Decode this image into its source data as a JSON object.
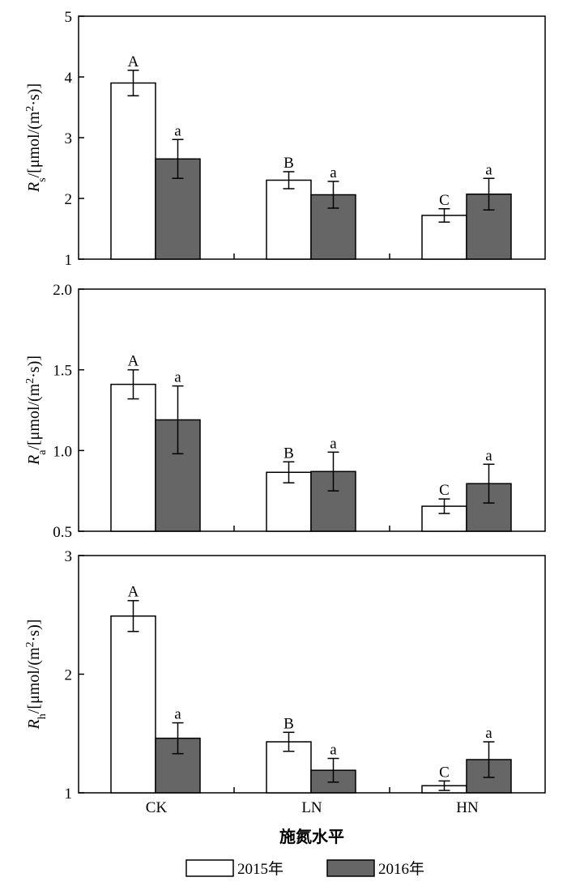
{
  "chart_data": {
    "type": "bar",
    "categories": [
      "CK",
      "LN",
      "HN"
    ],
    "xlabel": "施氮水平",
    "legend": {
      "placement": "bottom",
      "entries": [
        {
          "name": "2015年",
          "color": "#ffffff"
        },
        {
          "name": "2016年",
          "color": "#666666"
        }
      ]
    },
    "panels": [
      {
        "ylabel_main": "R",
        "ylabel_sub": "s",
        "ylabel_unit": "/[μmol/(m",
        "ylabel_sup": "2",
        "ylabel_tail": "·s)]",
        "ylim": [
          1,
          5
        ],
        "yticks": [
          1,
          2,
          3,
          4,
          5
        ],
        "ytick_labels": [
          "1",
          "2",
          "3",
          "4",
          "5"
        ],
        "series": [
          {
            "name": "2015年",
            "values": [
              3.9,
              2.3,
              1.72
            ],
            "errors": [
              0.21,
              0.14,
              0.11
            ],
            "labels": [
              "A",
              "B",
              "C"
            ]
          },
          {
            "name": "2016年",
            "values": [
              2.65,
              2.06,
              2.07
            ],
            "errors": [
              0.32,
              0.22,
              0.26
            ],
            "labels": [
              "a",
              "a",
              "a"
            ]
          }
        ]
      },
      {
        "ylabel_main": "R",
        "ylabel_sub": "a",
        "ylabel_unit": "/[μmol/(m",
        "ylabel_sup": "2",
        "ylabel_tail": "·s)]",
        "ylim": [
          0.5,
          2.0
        ],
        "yticks": [
          0.5,
          1.0,
          1.5,
          2.0
        ],
        "ytick_labels": [
          "0.5",
          "1.0",
          "1.5",
          "2.0"
        ],
        "series": [
          {
            "name": "2015年",
            "values": [
              1.41,
              0.865,
              0.655
            ],
            "errors": [
              0.09,
              0.065,
              0.045
            ],
            "labels": [
              "A",
              "B",
              "C"
            ]
          },
          {
            "name": "2016年",
            "values": [
              1.19,
              0.87,
              0.795
            ],
            "errors": [
              0.21,
              0.12,
              0.12
            ],
            "labels": [
              "a",
              "a",
              "a"
            ]
          }
        ]
      },
      {
        "ylabel_main": "R",
        "ylabel_sub": "h",
        "ylabel_unit": "/[μmol/(m",
        "ylabel_sup": "2",
        "ylabel_tail": "·s)]",
        "ylim": [
          1,
          3
        ],
        "yticks": [
          1,
          2,
          3
        ],
        "ytick_labels": [
          "1",
          "2",
          "3"
        ],
        "series": [
          {
            "name": "2015年",
            "values": [
              2.49,
              1.43,
              1.06
            ],
            "errors": [
              0.13,
              0.08,
              0.04
            ],
            "labels": [
              "A",
              "B",
              "C"
            ]
          },
          {
            "name": "2016年",
            "values": [
              1.46,
              1.19,
              1.28
            ],
            "errors": [
              0.13,
              0.1,
              0.15
            ],
            "labels": [
              "a",
              "a",
              "a"
            ]
          }
        ]
      }
    ]
  }
}
